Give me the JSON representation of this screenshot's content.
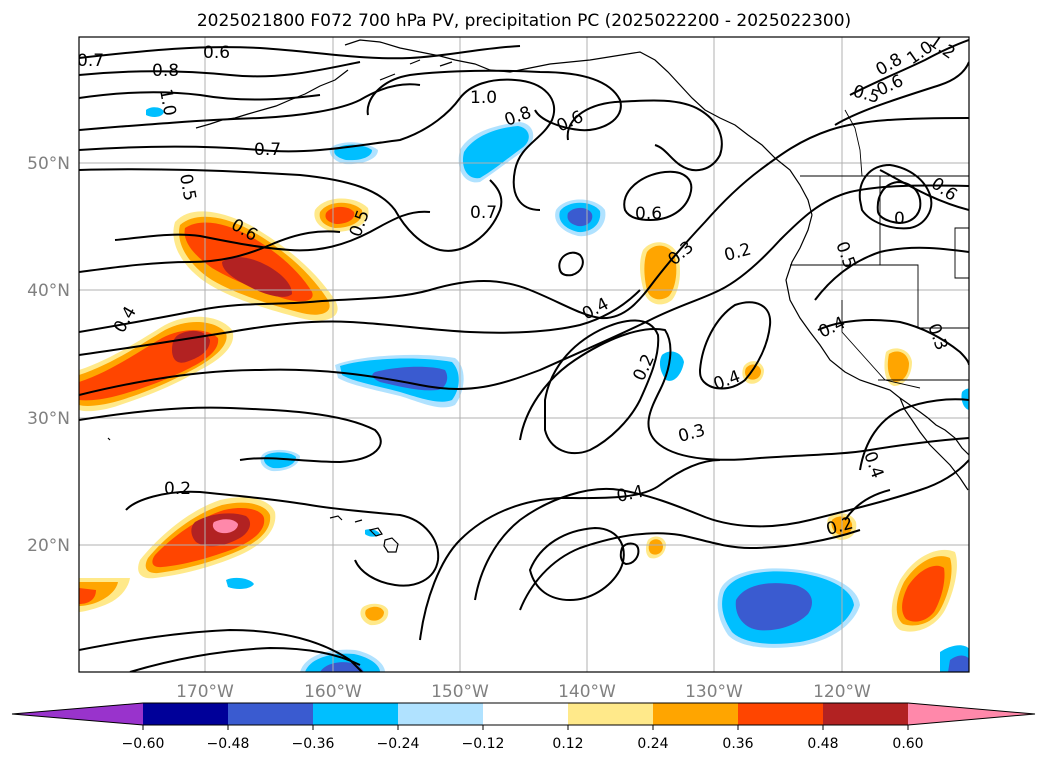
{
  "title": "2025021800 F072 700 hPa PV, precipitation PC (2025022200 - 2025022300)",
  "lon_labels": [
    "170°W",
    "160°W",
    "150°W",
    "140°W",
    "130°W",
    "120°W"
  ],
  "lat_labels": [
    "50°N",
    "40°N",
    "30°N",
    "20°N"
  ],
  "contour_labels": [
    "0.7",
    "0.6",
    "0.8",
    "1.0",
    "1.0",
    "0.8",
    "0.6",
    "0.7",
    "0.5",
    "0.6",
    "0.5",
    "0.7",
    "0.6",
    "0.3",
    "0.2",
    "0.4",
    "0.4",
    "0.2",
    "0.4",
    "0.3",
    "0.2",
    "0.4",
    "0.2",
    "1.0",
    "0.8",
    "0.6",
    "0.5",
    "0.6",
    "0",
    "0.5",
    "0.4",
    "0.3",
    "0.4",
    "1.2"
  ],
  "colorbar": {
    "ticks": [
      "−0.60",
      "−0.48",
      "−0.36",
      "−0.24",
      "−0.12",
      "0.12",
      "0.24",
      "0.36",
      "0.48",
      "0.60"
    ],
    "colors": [
      "#9933cc",
      "#000099",
      "#3a5bd0",
      "#00bfff",
      "#b0e2ff",
      "#ffffff",
      "#ffe98a",
      "#ffa500",
      "#ff4500",
      "#b22222",
      "#ff88aa"
    ]
  },
  "fill_colors": {
    "neg_dark": "#3a5bd0",
    "neg_mid": "#00bfff",
    "neg_light": "#b0e2ff",
    "pos_light": "#ffe98a",
    "pos_mid": "#ffa500",
    "pos_strong": "#ff4500",
    "pos_dark": "#b22222",
    "pos_max": "#ff88aa"
  }
}
